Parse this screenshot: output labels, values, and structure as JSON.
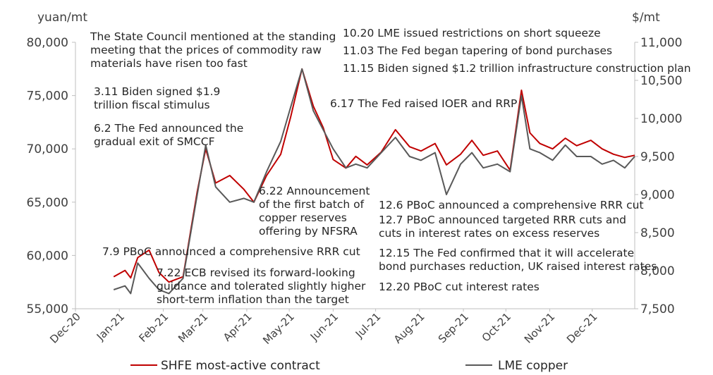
{
  "chart_data": {
    "type": "line",
    "y_left_unit": "yuan/mt",
    "y_right_unit": "$/mt",
    "y_left_ticks": [
      "55,000",
      "60,000",
      "65,000",
      "70,000",
      "75,000",
      "80,000"
    ],
    "y_right_ticks": [
      "7,500",
      "8,000",
      "8,500",
      "9,000",
      "9,500",
      "10,000",
      "10,500",
      "11,000"
    ],
    "ylim_left": [
      55000,
      80000
    ],
    "ylim_right": [
      7500,
      11000
    ],
    "x_ticks": [
      "Dec-20",
      "Jan-21",
      "Feb-21",
      "Mar-21",
      "Apr-21",
      "May-21",
      "Jun-21",
      "Jul-21",
      "Aug-21",
      "Sep-21",
      "Oct-21",
      "Nov-21",
      "Dec-21"
    ],
    "x": [
      "2020-12-28",
      "2021-01-05",
      "2021-01-09",
      "2021-01-14",
      "2021-01-22",
      "2021-01-29",
      "2021-02-05",
      "2021-02-15",
      "2021-02-20",
      "2021-02-25",
      "2021-03-03",
      "2021-03-10",
      "2021-03-20",
      "2021-03-30",
      "2021-04-06",
      "2021-04-15",
      "2021-04-25",
      "2021-05-02",
      "2021-05-10",
      "2021-05-18",
      "2021-05-25",
      "2021-06-01",
      "2021-06-10",
      "2021-06-17",
      "2021-06-25",
      "2021-07-05",
      "2021-07-15",
      "2021-07-25",
      "2021-08-02",
      "2021-08-12",
      "2021-08-20",
      "2021-08-30",
      "2021-09-07",
      "2021-09-15",
      "2021-09-25",
      "2021-10-04",
      "2021-10-12",
      "2021-10-18",
      "2021-10-25",
      "2021-11-03",
      "2021-11-12",
      "2021-11-20",
      "2021-11-30",
      "2021-12-08",
      "2021-12-16",
      "2021-12-24",
      "2021-12-31"
    ],
    "series": [
      {
        "name": "SHFE most-active contract",
        "axis": "left",
        "color": "#c00000",
        "values": [
          58000,
          58600,
          57900,
          59800,
          60500,
          58400,
          57500,
          58000,
          62000,
          66000,
          70000,
          66800,
          67500,
          66200,
          65000,
          67500,
          69500,
          73000,
          77500,
          74000,
          72000,
          69000,
          68200,
          69300,
          68500,
          69700,
          71800,
          70200,
          69800,
          70500,
          68500,
          69500,
          70800,
          69400,
          69800,
          68000,
          75500,
          71500,
          70500,
          70000,
          71000,
          70300,
          70800,
          70000,
          69500,
          69200,
          69400
        ]
      },
      {
        "name": "LME copper",
        "axis": "right",
        "color": "#595959",
        "values": [
          7750,
          7800,
          7700,
          8100,
          7900,
          7750,
          7700,
          7900,
          8450,
          9000,
          9650,
          9100,
          8900,
          8950,
          8900,
          9300,
          9700,
          10150,
          10650,
          10100,
          9850,
          9600,
          9350,
          9400,
          9350,
          9550,
          9750,
          9500,
          9450,
          9550,
          9000,
          9400,
          9550,
          9350,
          9400,
          9300,
          10300,
          9600,
          9550,
          9450,
          9650,
          9500,
          9500,
          9400,
          9450,
          9350,
          9500
        ]
      }
    ],
    "annotations": [
      [
        "The State Council mentioned at the standing",
        "meeting that the prices of commodity raw",
        "materials have risen too fast"
      ],
      [
        "3.11 Biden signed $1.9",
        "trillion fiscal stimulus"
      ],
      [
        "6.2 The Fed announced the",
        "gradual exit of SMCCF"
      ],
      [
        "10.20 LME issued restrictions on short squeeze"
      ],
      [
        "11.03 The Fed began tapering of bond purchases"
      ],
      [
        "11.15 Biden signed $1.2 trillion infrastructure construction plan"
      ],
      [
        "6.17 The Fed raised IOER and RRP"
      ],
      [
        "6.22 Announcement",
        "of the first batch of",
        "copper reserves",
        "offering by NFSRA"
      ],
      [
        "12.6 PBoC announced a comprehensive RRR cut"
      ],
      [
        "12.7 PBoC announced targeted RRR cuts and",
        "cuts in interest rates on excess reserves"
      ],
      [
        "7.9 PBoC announced a comprehensive RRR cut"
      ],
      [
        "12.15 The Fed confirmed that it will accelerate",
        "bond purchases reduction, UK raised interest rates"
      ],
      [
        "7.22 ECB revised its forward-looking",
        "guidance and tolerated slightly higher",
        "short-term inflation than the target"
      ],
      [
        "12.20 PBoC cut interest rates"
      ]
    ],
    "legend_position": "bottom",
    "grid": false
  }
}
